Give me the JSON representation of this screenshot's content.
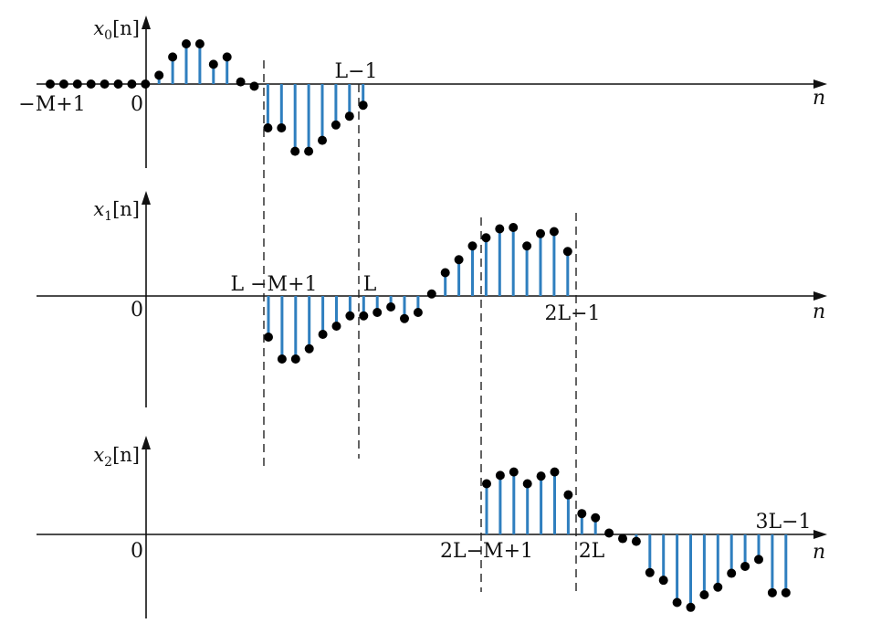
{
  "figure": {
    "panels": [
      {
        "id": "x0",
        "label": {
          "var": "x",
          "sub": "0",
          "arg": "[n]"
        },
        "h_axis_label": "n",
        "annotations": [
          {
            "id": "minus-m-plus-1",
            "text": "−M+1"
          },
          {
            "id": "zero",
            "text": "0"
          },
          {
            "id": "l-minus-1",
            "text": "L−1"
          }
        ],
        "samples": [
          0,
          0,
          0,
          0,
          0,
          0,
          0,
          0,
          0.12,
          0.37,
          0.55,
          0.55,
          0.27,
          0.37,
          0.03,
          -0.03,
          -0.6,
          -0.6,
          -0.92,
          -0.92,
          -0.77,
          -0.56,
          -0.44,
          -0.29
        ]
      },
      {
        "id": "x1",
        "label": {
          "var": "x",
          "sub": "1",
          "arg": "[n]"
        },
        "h_axis_label": "n",
        "annotations": [
          {
            "id": "zero",
            "text": "0"
          },
          {
            "id": "l-minus-m-plus-1",
            "text": "L −M+1"
          },
          {
            "id": "l",
            "text": "L"
          },
          {
            "id": "2l-minus-1",
            "text": "2L−1"
          }
        ],
        "samples": [
          -0.6,
          -0.92,
          -0.92,
          -0.77,
          -0.56,
          -0.44,
          -0.29,
          -0.29,
          -0.24,
          -0.16,
          -0.33,
          -0.24,
          0.03,
          0.34,
          0.53,
          0.73,
          0.85,
          0.98,
          1.0,
          0.73,
          0.91,
          0.94,
          0.65
        ]
      },
      {
        "id": "x2",
        "label": {
          "var": "x",
          "sub": "2",
          "arg": "[n]"
        },
        "h_axis_label": "n",
        "annotations": [
          {
            "id": "zero",
            "text": "0"
          },
          {
            "id": "2l-minus-m-plus-1",
            "text": "2L−M+1"
          },
          {
            "id": "2l",
            "text": "2L"
          },
          {
            "id": "3l-minus-1",
            "text": "3L−1"
          }
        ],
        "samples": [
          0.73,
          0.85,
          0.9,
          0.73,
          0.84,
          0.9,
          0.57,
          0.3,
          0.24,
          0.02,
          -0.06,
          -0.1,
          -0.55,
          -0.66,
          -0.98,
          -1.05,
          -0.87,
          -0.76,
          -0.56,
          -0.46,
          -0.36,
          -0.84,
          -0.84
        ]
      }
    ]
  }
}
